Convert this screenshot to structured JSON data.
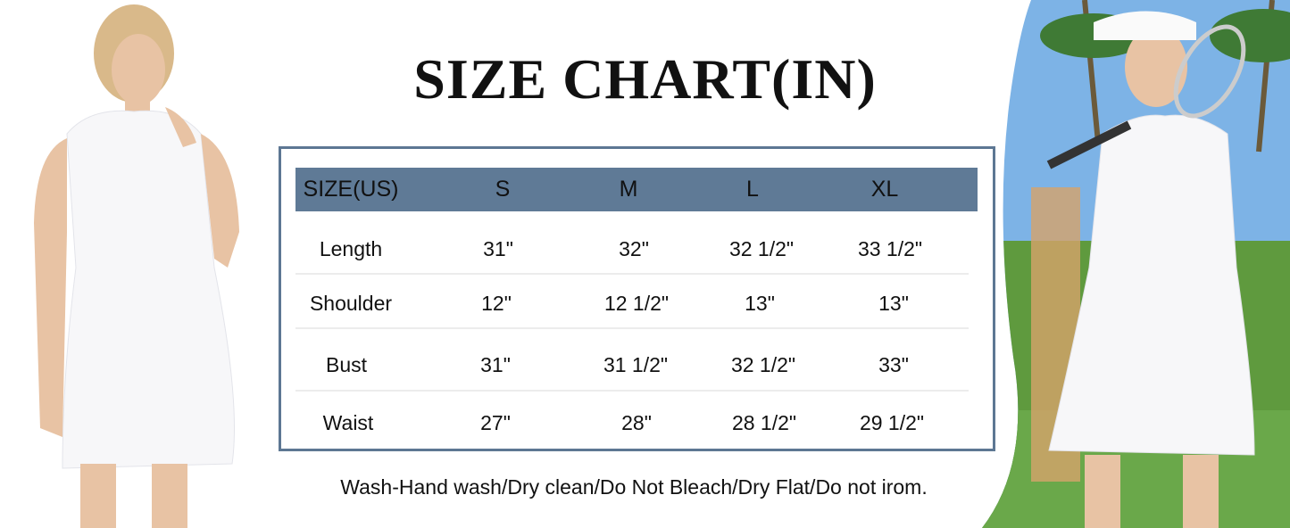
{
  "title": "SIZE CHART(IN)",
  "table": {
    "headers": [
      "SIZE(US)",
      "S",
      "M",
      "L",
      "XL"
    ],
    "rows": [
      {
        "label": "Length",
        "values": [
          "31\"",
          "32\"",
          "32 1/2\"",
          "33 1/2\""
        ]
      },
      {
        "label": "Shoulder",
        "values": [
          "12\"",
          "12 1/2\"",
          "13\"",
          "13\""
        ]
      },
      {
        "label": "Bust",
        "values": [
          "31\"",
          "31 1/2\"",
          "32 1/2\"",
          "33\""
        ]
      },
      {
        "label": "Waist",
        "values": [
          "27\"",
          "28\"",
          "28 1/2\"",
          "29 1/2\""
        ]
      }
    ]
  },
  "care_instructions": "Wash-Hand wash/Dry clean/Do Not Bleach/Dry Flat/Do not irom.",
  "colors": {
    "header_bar": "#5f7a96",
    "border": "#5d7793"
  }
}
